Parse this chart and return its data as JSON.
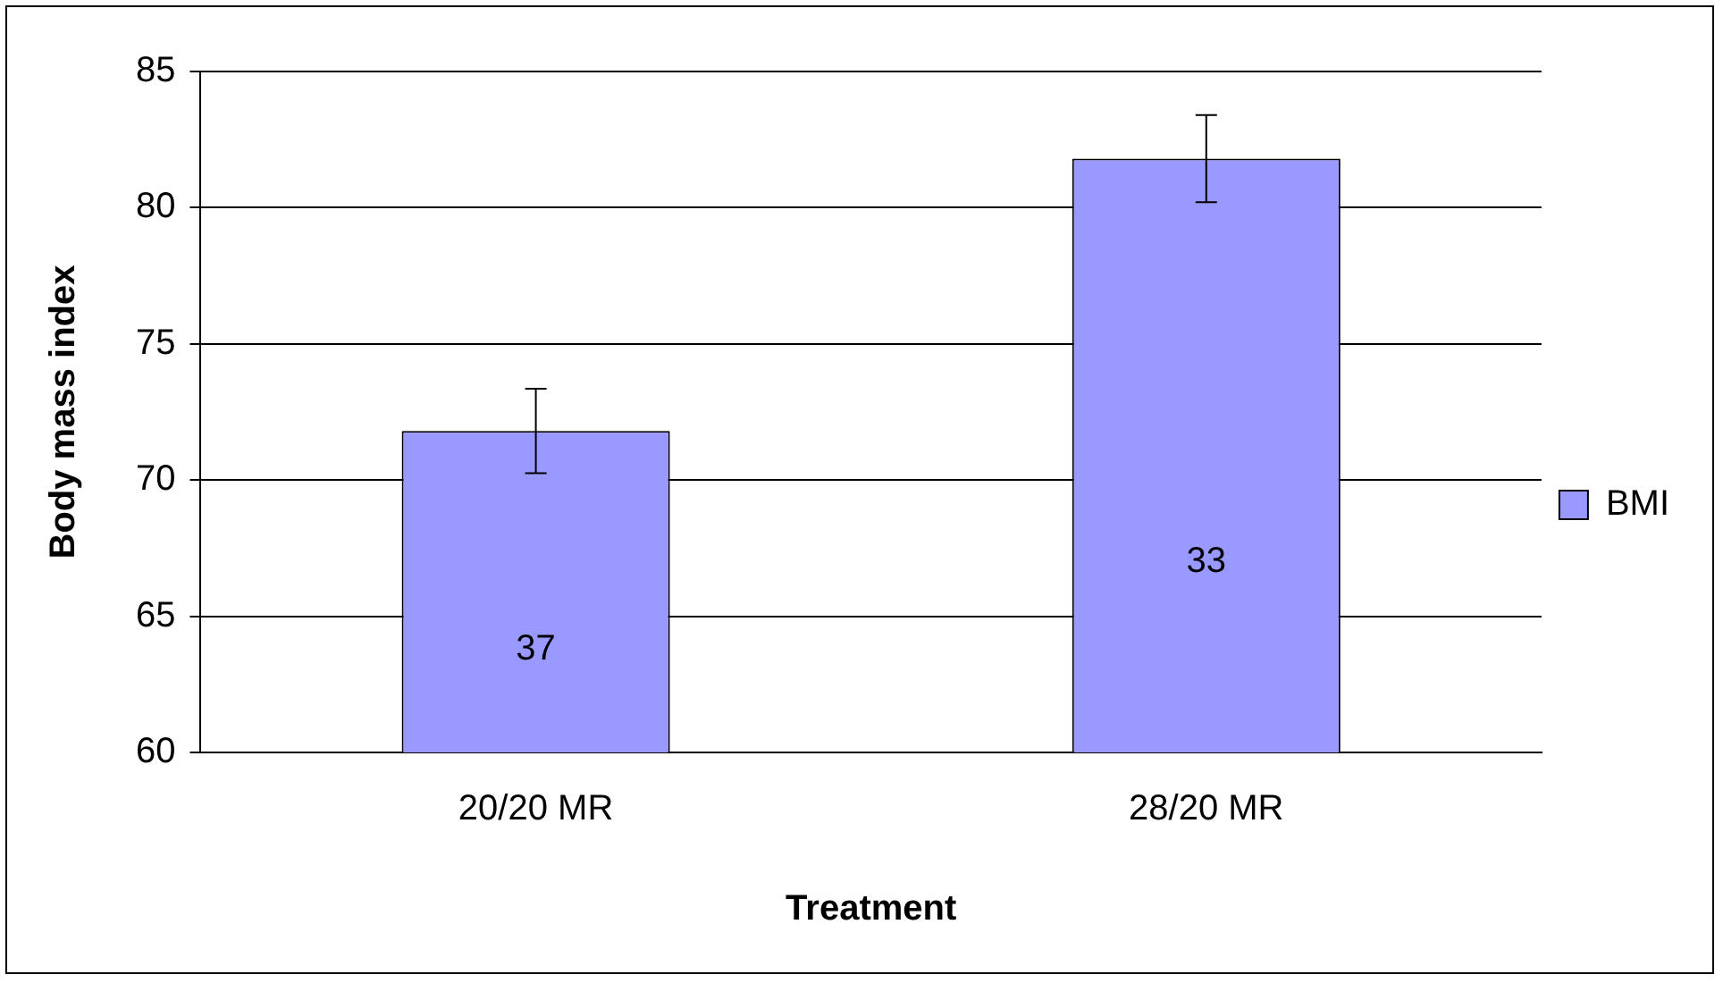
{
  "chart_data": {
    "type": "bar",
    "xlabel": "Treatment",
    "ylabel": "Body mass index",
    "categories": [
      "20/20 MR",
      "28/20 MR"
    ],
    "series": [
      {
        "name": "BMI",
        "color": "#9999ff",
        "values": [
          71.8,
          81.8
        ],
        "errors": [
          1.55,
          1.6
        ]
      }
    ],
    "ylim": [
      60,
      85
    ],
    "yticks": [
      60,
      65,
      70,
      75,
      80,
      85
    ],
    "grid": "y",
    "legend": "right",
    "annotations": [
      "37",
      "33"
    ]
  }
}
